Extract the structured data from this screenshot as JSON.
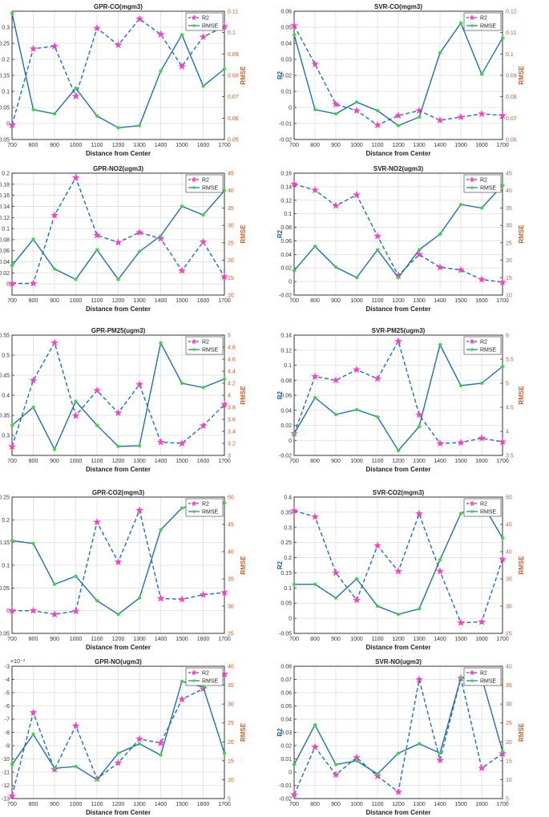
{
  "chart_data": [
    {
      "type": "line",
      "title": "GPR-CO(mgm3)",
      "xlabel": "Distance from Center",
      "ylabel": "R2",
      "y2label": "RMSE",
      "x": [
        700,
        800,
        900,
        1000,
        1100,
        1200,
        1300,
        1400,
        1500,
        1600,
        1700
      ],
      "ylim": [
        -0.05,
        0.35
      ],
      "yticks": [
        "-0.05",
        "0",
        "0.05",
        "0.1",
        "0.15",
        "0.2",
        "0.25",
        "0.3"
      ],
      "ytick_values": [
        -0.05,
        0,
        0.05,
        0.1,
        0.15,
        0.2,
        0.25,
        0.3
      ],
      "y2lim": [
        0.05,
        0.11
      ],
      "y2ticks": [
        "0.05",
        "0.06",
        "0.07",
        "0.08",
        "0.09",
        "0.1",
        "0.11"
      ],
      "y2tick_values": [
        0.05,
        0.06,
        0.07,
        0.08,
        0.09,
        0.1,
        0.11
      ],
      "xticks": [
        "700",
        "800",
        "900",
        "1000",
        "1100",
        "1200",
        "1300",
        "1400",
        "1500",
        "1600",
        "1700"
      ],
      "series": [
        {
          "name": "R2",
          "axis": "left",
          "values": [
            -0.005,
            0.233,
            0.241,
            0.085,
            0.297,
            0.245,
            0.326,
            0.278,
            0.178,
            0.27,
            0.302
          ]
        },
        {
          "name": "RMSE",
          "axis": "right",
          "values": [
            0.109,
            0.064,
            0.062,
            0.074,
            0.061,
            0.0555,
            0.0565,
            0.082,
            0.099,
            0.075,
            0.083
          ]
        }
      ],
      "legend": "top-right"
    },
    {
      "type": "line",
      "title": "SVR-CO(mgm3)",
      "xlabel": "Distance from Center",
      "ylabel": "R2",
      "y2label": "RMSE",
      "x": [
        700,
        800,
        900,
        1000,
        1100,
        1200,
        1300,
        1400,
        1500,
        1600,
        1700
      ],
      "ylim": [
        -0.02,
        0.06
      ],
      "yticks": [
        "-0.02",
        "-0.01",
        "0",
        "0.01",
        "0.02",
        "0.03",
        "0.04",
        "0.05",
        "0.06"
      ],
      "ytick_values": [
        -0.02,
        -0.01,
        0,
        0.01,
        0.02,
        0.03,
        0.04,
        0.05,
        0.06
      ],
      "y2lim": [
        0.06,
        0.12
      ],
      "y2ticks": [
        "0.06",
        "0.07",
        "0.08",
        "0.09",
        "0.1",
        "0.11",
        "0.12"
      ],
      "y2tick_values": [
        0.06,
        0.07,
        0.08,
        0.09,
        0.1,
        0.11,
        0.12
      ],
      "xticks": [
        "700",
        "800",
        "900",
        "1000",
        "1100",
        "1200",
        "1300",
        "1400",
        "1500",
        "1600",
        "1700"
      ],
      "series": [
        {
          "name": "R2",
          "axis": "left",
          "values": [
            0.051,
            0.027,
            0.002,
            -0.002,
            -0.011,
            -0.005,
            -0.002,
            -0.008,
            -0.006,
            -0.004,
            -0.005
          ]
        },
        {
          "name": "RMSE",
          "axis": "right",
          "values": [
            0.109,
            0.074,
            0.072,
            0.0775,
            0.0735,
            0.0665,
            0.0705,
            0.1005,
            0.1145,
            0.0905,
            0.1075
          ]
        }
      ],
      "legend": "top-right"
    },
    {
      "type": "line",
      "title": "GPR-NO2(ugm3)",
      "xlabel": "Distance from Center",
      "ylabel": "R2",
      "y2label": "RMSE",
      "x": [
        700,
        800,
        900,
        1000,
        1100,
        1200,
        1300,
        1400,
        1500,
        1600,
        1700
      ],
      "ylim": [
        -0.02,
        0.2
      ],
      "yticks": [
        "0",
        "0.02",
        "0.04",
        "0.06",
        "0.08",
        "0.1",
        "0.12",
        "0.14",
        "0.16",
        "0.18",
        "0.2"
      ],
      "ytick_values": [
        0,
        0.02,
        0.04,
        0.06,
        0.08,
        0.1,
        0.12,
        0.14,
        0.16,
        0.18,
        0.2
      ],
      "y2lim": [
        10,
        45
      ],
      "y2ticks": [
        "10",
        "15",
        "20",
        "25",
        "30",
        "35",
        "40",
        "45"
      ],
      "y2tick_values": [
        10,
        15,
        20,
        25,
        30,
        35,
        40,
        45
      ],
      "xticks": [
        "700",
        "800",
        "900",
        "1000",
        "1100",
        "1200",
        "1300",
        "1400",
        "1500",
        "1600",
        "1700"
      ],
      "series": [
        {
          "name": "R2",
          "axis": "left",
          "values": [
            0.001,
            0.001,
            0.124,
            0.192,
            0.088,
            0.075,
            0.093,
            0.082,
            0.024,
            0.076,
            0.013
          ]
        },
        {
          "name": "RMSE",
          "axis": "right",
          "values": [
            18.5,
            26.0,
            17.5,
            14.5,
            23.0,
            14.5,
            22.5,
            27.0,
            35.5,
            33.0,
            40.0
          ]
        }
      ],
      "legend": "top-right"
    },
    {
      "type": "line",
      "title": "SVR-NO2(ugm3)",
      "xlabel": "Distance from Center",
      "ylabel": "R2",
      "y2label": "RMSE",
      "x": [
        700,
        800,
        900,
        1000,
        1100,
        1200,
        1300,
        1400,
        1500,
        1600,
        1700
      ],
      "ylim": [
        -0.02,
        0.16
      ],
      "yticks": [
        "-0.02",
        "0",
        "0.02",
        "0.04",
        "0.06",
        "0.08",
        "0.1",
        "0.12",
        "0.14",
        "0.16"
      ],
      "ytick_values": [
        -0.02,
        0,
        0.02,
        0.04,
        0.06,
        0.08,
        0.1,
        0.12,
        0.14,
        0.16
      ],
      "y2lim": [
        10,
        45
      ],
      "y2ticks": [
        "10",
        "15",
        "20",
        "25",
        "30",
        "35",
        "40",
        "45"
      ],
      "y2tick_values": [
        10,
        15,
        20,
        25,
        30,
        35,
        40,
        45
      ],
      "xticks": [
        "700",
        "800",
        "900",
        "1000",
        "1100",
        "1200",
        "1300",
        "1400",
        "1500",
        "1600",
        "1700"
      ],
      "series": [
        {
          "name": "R2",
          "axis": "left",
          "values": [
            0.144,
            0.135,
            0.112,
            0.128,
            0.067,
            0.009,
            0.04,
            0.021,
            0.017,
            0.003,
            -0.001
          ]
        },
        {
          "name": "RMSE",
          "axis": "right",
          "values": [
            17.0,
            24.0,
            18.0,
            15.0,
            23.0,
            15.0,
            23.0,
            27.5,
            36.0,
            35.0,
            41.5
          ]
        }
      ],
      "legend": "top-right"
    },
    {
      "type": "line",
      "title": "GPR-PM25(ugm3)",
      "xlabel": "Distance from Center",
      "ylabel": "R2",
      "y2label": "RMSE",
      "x": [
        700,
        800,
        900,
        1000,
        1100,
        1200,
        1300,
        1400,
        1500,
        1600,
        1700
      ],
      "ylim": [
        0.25,
        0.55
      ],
      "yticks": [
        "0.3",
        "0.35",
        "0.4",
        "0.45",
        "0.5",
        "0.55"
      ],
      "ytick_values": [
        0.3,
        0.35,
        0.4,
        0.45,
        0.5,
        0.55
      ],
      "y2lim": [
        3.0,
        5.0
      ],
      "y2ticks": [
        "3",
        "3.2",
        "3.4",
        "3.6",
        "3.8",
        "4",
        "4.2",
        "4.4",
        "4.6",
        "4.8",
        "5"
      ],
      "y2tick_values": [
        3.0,
        3.2,
        3.4,
        3.6,
        3.8,
        4.0,
        4.2,
        4.4,
        4.6,
        4.8,
        5.0
      ],
      "xticks": [
        "700",
        "800",
        "900",
        "1000",
        "1100",
        "1200",
        "1300",
        "1400",
        "1500",
        "1600",
        "1700"
      ],
      "series": [
        {
          "name": "R2",
          "axis": "left",
          "values": [
            0.272,
            0.437,
            0.531,
            0.349,
            0.412,
            0.356,
            0.427,
            0.283,
            0.28,
            0.324,
            0.377
          ]
        },
        {
          "name": "RMSE",
          "axis": "right",
          "values": [
            3.5,
            3.8,
            3.1,
            3.9,
            3.5,
            3.15,
            3.16,
            4.87,
            4.2,
            4.13,
            4.27
          ]
        }
      ],
      "legend": "top-right"
    },
    {
      "type": "line",
      "title": "SVR-PM25(ugm3)",
      "xlabel": "Distance from Center",
      "ylabel": "R2",
      "y2label": "RMSE",
      "x": [
        700,
        800,
        900,
        1000,
        1100,
        1200,
        1300,
        1400,
        1500,
        1600,
        1700
      ],
      "ylim": [
        -0.02,
        0.14
      ],
      "yticks": [
        "-0.02",
        "0",
        "0.02",
        "0.04",
        "0.06",
        "0.08",
        "0.1",
        "0.12",
        "0.14"
      ],
      "ytick_values": [
        -0.02,
        0,
        0.02,
        0.04,
        0.06,
        0.08,
        0.1,
        0.12,
        0.14
      ],
      "y2lim": [
        3.5,
        6.0
      ],
      "y2ticks": [
        "3.5",
        "4",
        "4.5",
        "5",
        "5.5",
        "6"
      ],
      "y2tick_values": [
        3.5,
        4.0,
        4.5,
        5.0,
        5.5,
        6.0
      ],
      "xticks": [
        "700",
        "800",
        "900",
        "1000",
        "1100",
        "1200",
        "1300",
        "1400",
        "1500",
        "1600",
        "1700"
      ],
      "series": [
        {
          "name": "R2",
          "axis": "left",
          "values": [
            0.009,
            0.085,
            0.08,
            0.094,
            0.082,
            0.132,
            0.034,
            -0.004,
            -0.003,
            0.003,
            -0.002
          ]
        },
        {
          "name": "RMSE",
          "axis": "right",
          "values": [
            3.95,
            4.7,
            4.35,
            4.45,
            4.3,
            3.6,
            4.1,
            5.8,
            4.95,
            5.0,
            5.35
          ]
        }
      ],
      "legend": "top-right"
    },
    {
      "type": "line",
      "title": "GPR-CO2(mgm3)",
      "xlabel": "Distance from Center",
      "ylabel": "R2",
      "y2label": "RMSE",
      "x": [
        700,
        800,
        900,
        1000,
        1100,
        1200,
        1300,
        1400,
        1500,
        1600,
        1700
      ],
      "ylim": [
        -0.05,
        0.25
      ],
      "yticks": [
        "-0.05",
        "0",
        "0.05",
        "0.1",
        "0.15",
        "0.2",
        "0.25"
      ],
      "ytick_values": [
        -0.05,
        0,
        0.05,
        0.1,
        0.15,
        0.2,
        0.25
      ],
      "y2lim": [
        25,
        50
      ],
      "y2ticks": [
        "25",
        "30",
        "35",
        "40",
        "45",
        "50"
      ],
      "y2tick_values": [
        25,
        30,
        35,
        40,
        45,
        50
      ],
      "xticks": [
        "700",
        "800",
        "900",
        "1000",
        "1100",
        "1200",
        "1300",
        "1400",
        "1500",
        "1600",
        "1700"
      ],
      "series": [
        {
          "name": "R2",
          "axis": "left",
          "values": [
            0.0,
            0.0,
            -0.008,
            -0.001,
            0.195,
            0.107,
            0.221,
            0.027,
            0.025,
            0.035,
            0.04
          ]
        },
        {
          "name": "RMSE",
          "axis": "right",
          "values": [
            42.0,
            41.5,
            34.0,
            35.5,
            31.0,
            28.5,
            31.5,
            44.0,
            48.0,
            49.0,
            48.9
          ]
        }
      ],
      "legend": "top-right"
    },
    {
      "type": "line",
      "title": "SVR-CO2(mgm3)",
      "xlabel": "Distance from Center",
      "ylabel": "R2",
      "y2label": "RMSE",
      "x": [
        700,
        800,
        900,
        1000,
        1100,
        1200,
        1300,
        1400,
        1500,
        1600,
        1700
      ],
      "ylim": [
        -0.05,
        0.4
      ],
      "yticks": [
        "-0.05",
        "0",
        "0.05",
        "0.1",
        "0.15",
        "0.2",
        "0.25",
        "0.3",
        "0.35",
        "0.4"
      ],
      "ytick_values": [
        -0.05,
        0,
        0.05,
        0.1,
        0.15,
        0.2,
        0.25,
        0.3,
        0.35,
        0.4
      ],
      "y2lim": [
        25,
        50
      ],
      "y2ticks": [
        "25",
        "30",
        "35",
        "40",
        "45",
        "50"
      ],
      "y2tick_values": [
        25,
        30,
        35,
        40,
        45,
        50
      ],
      "xticks": [
        "700",
        "800",
        "900",
        "1000",
        "1100",
        "1200",
        "1300",
        "1400",
        "1500",
        "1600",
        "1700"
      ],
      "series": [
        {
          "name": "R2",
          "axis": "left",
          "values": [
            0.355,
            0.335,
            0.15,
            0.06,
            0.24,
            0.155,
            0.345,
            0.155,
            -0.015,
            -0.012,
            0.195
          ]
        },
        {
          "name": "RMSE",
          "axis": "right",
          "values": [
            34.0,
            34.0,
            31.5,
            35.0,
            30.0,
            28.5,
            29.5,
            38.5,
            47.0,
            49.0,
            42.5
          ]
        }
      ],
      "legend": "top-right"
    },
    {
      "type": "line",
      "title": "GPR-NO(ugm3)",
      "xlabel": "Distance from Center",
      "ylabel": "R2",
      "y2label": "RMSE",
      "yscale_note": "×10⁻³",
      "x": [
        700,
        800,
        900,
        1000,
        1100,
        1200,
        1300,
        1400,
        1500,
        1600,
        1700
      ],
      "ylim": [
        -13,
        -3
      ],
      "yticks": [
        "-13",
        "-12",
        "-11",
        "-10",
        "-9",
        "-8",
        "-7",
        "-6",
        "-5",
        "-4",
        "-3"
      ],
      "ytick_values": [
        -13,
        -12,
        -11,
        -10,
        -9,
        -8,
        -7,
        -6,
        -5,
        -4,
        -3
      ],
      "y2lim": [
        5,
        40
      ],
      "y2ticks": [
        "5",
        "10",
        "15",
        "20",
        "25",
        "30",
        "35",
        "40"
      ],
      "y2tick_values": [
        5,
        10,
        15,
        20,
        25,
        30,
        35,
        40
      ],
      "xticks": [
        "700",
        "800",
        "900",
        "1000",
        "1100",
        "1200",
        "1300",
        "1400",
        "1500",
        "1600",
        "1700"
      ],
      "series": [
        {
          "name": "R2",
          "axis": "left",
          "values": [
            -12.8,
            -6.5,
            -10.8,
            -7.5,
            -11.5,
            -10.3,
            -8.5,
            -8.8,
            -5.5,
            -4.7,
            -3.6
          ]
        },
        {
          "name": "RMSE",
          "axis": "right",
          "values": [
            14.0,
            22.0,
            13.0,
            13.5,
            10.0,
            17.0,
            19.5,
            16.5,
            36.0,
            34.5,
            17.0
          ]
        }
      ],
      "legend": "top-right"
    },
    {
      "type": "line",
      "title": "SVR-NO(ugm3)",
      "xlabel": "Distance from Center",
      "ylabel": "R2",
      "y2label": "RMSE",
      "x": [
        700,
        800,
        900,
        1000,
        1100,
        1200,
        1300,
        1400,
        1500,
        1600,
        1700
      ],
      "ylim": [
        -0.02,
        0.08
      ],
      "yticks": [
        "-0.02",
        "-0.01",
        "0",
        "0.01",
        "0.02",
        "0.03",
        "0.04",
        "0.05",
        "0.06",
        "0.07",
        "0.08"
      ],
      "ytick_values": [
        -0.02,
        -0.01,
        0,
        0.01,
        0.02,
        0.03,
        0.04,
        0.05,
        0.06,
        0.07,
        0.08
      ],
      "y2lim": [
        5,
        40
      ],
      "y2ticks": [
        "5",
        "10",
        "15",
        "20",
        "25",
        "30",
        "35",
        "40"
      ],
      "y2tick_values": [
        5,
        10,
        15,
        20,
        25,
        30,
        35,
        40
      ],
      "xticks": [
        "700",
        "800",
        "900",
        "1000",
        "1100",
        "1200",
        "1300",
        "1400",
        "1500",
        "1600",
        "1700"
      ],
      "series": [
        {
          "name": "R2",
          "axis": "left",
          "values": [
            -0.017,
            0.019,
            -0.002,
            0.011,
            -0.003,
            -0.015,
            0.07,
            0.009,
            0.071,
            0.003,
            0.014
          ]
        },
        {
          "name": "RMSE",
          "axis": "right",
          "values": [
            14.0,
            24.5,
            14.0,
            15.0,
            11.5,
            17.0,
            19.5,
            17.0,
            37.0,
            37.0,
            17.5
          ]
        }
      ],
      "legend": "top-right"
    }
  ],
  "colors": {
    "r2": "#e24fa1",
    "r2_marker": "#ff3fc8",
    "rmse": "#1f6fb5",
    "rmse_marker": "#33dd33",
    "left_axis": "#1f5fa8",
    "right_axis": "#c0612b"
  }
}
